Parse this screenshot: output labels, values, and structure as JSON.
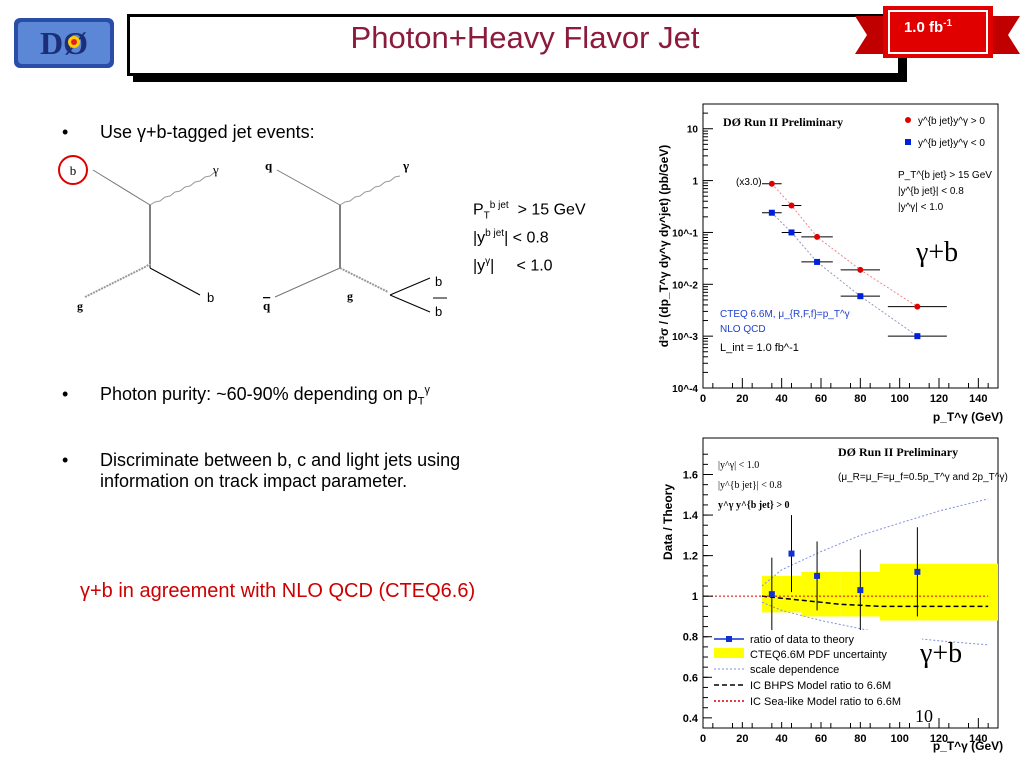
{
  "header": {
    "title": "Photon+Heavy Flavor Jet",
    "lumi_badge": "1.0 fb",
    "lumi_badge_exp": "-1",
    "logo_text": "DØ"
  },
  "bullets": [
    {
      "text": "Use γ+b-tagged jet events:"
    },
    {
      "text": "Photon purity: ~60-90% depending on p",
      "sub": "T",
      "sup": "γ"
    },
    {
      "text": "Discriminate between b, c and light jets using",
      "line2": "information on track impact parameter."
    }
  ],
  "conclusion": "γ+b in agreement with NLO QCD (CTEQ6.6)",
  "cuts": {
    "c1": {
      "var": "P",
      "sub": "T",
      "sup": "b jet",
      "op": "> 15 GeV"
    },
    "c2": {
      "pre": "|y",
      "sup": "b jet",
      "post": "| < 0.8"
    },
    "c3": {
      "pre": "|y",
      "sup": "γ",
      "post": "|     < 1.0"
    }
  },
  "feynman": {
    "d1": {
      "b_circled": "b",
      "gamma": "γ",
      "g": "g",
      "b_out": "b"
    },
    "d2": {
      "q": "q",
      "gamma": "γ",
      "qbar": "q",
      "g": "g",
      "b": "b",
      "bbar": "b"
    }
  },
  "page_number": "10",
  "chart_data": [
    {
      "type": "scatter",
      "title": "DØ Run II Preliminary",
      "ylabel": "d³σ / (dp_T^γ dy^γ dy^jet)  (pb/GeV)",
      "xlabel": "p_T^γ (GeV)",
      "xlim": [
        0,
        150
      ],
      "ylim": [
        0.0001,
        30
      ],
      "yscale": "log",
      "xticks": [
        "0",
        "20",
        "40",
        "60",
        "80",
        "100",
        "120",
        "140"
      ],
      "yticks": [
        "10^-4",
        "10^-3",
        "10^-2",
        "10^-1",
        "1",
        "10"
      ],
      "legend": [
        "y^{b jet}y^γ > 0",
        "y^{b jet}y^γ < 0"
      ],
      "cut_text": [
        "P_T^{b jet} > 15 GeV",
        "|y^{b jet}| < 0.8",
        "|y^γ|    < 1.0"
      ],
      "theory_text": [
        "CTEQ 6.6M, μ_{R,F,f}=p_T^γ",
        "NLO QCD",
        "L_int = 1.0 fb^-1"
      ],
      "scale_note": "(x3.0)",
      "big_label": "γ+b",
      "series": [
        {
          "name": "y^{b jet}y^γ > 0",
          "color": "#e00000",
          "marker": "circle",
          "x": [
            35,
            45,
            58,
            80,
            109
          ],
          "xerr": [
            5,
            5,
            8,
            10,
            15
          ],
          "y": [
            0.87,
            0.33,
            0.082,
            0.019,
            0.0037
          ]
        },
        {
          "name": "y^{b jet}y^γ < 0",
          "color": "#0020e0",
          "marker": "square",
          "x": [
            35,
            45,
            58,
            80,
            109
          ],
          "xerr": [
            5,
            5,
            8,
            10,
            15
          ],
          "y": [
            0.24,
            0.1,
            0.027,
            0.0059,
            0.001
          ]
        }
      ]
    },
    {
      "type": "scatter",
      "title": "DØ Run II Preliminary",
      "subtitle": "(μ_R=μ_F=μ_f=0.5p_T^γ and 2p_T^γ)",
      "ylabel": "Data / Theory",
      "xlabel": "p_T^γ (GeV)",
      "xlim": [
        0,
        150
      ],
      "ylim": [
        0.35,
        1.78
      ],
      "xticks": [
        "0",
        "20",
        "40",
        "60",
        "80",
        "100",
        "120",
        "140"
      ],
      "yticks": [
        "0.4",
        "0.6",
        "0.8",
        "1",
        "1.2",
        "1.4",
        "1.6"
      ],
      "cut_text": [
        "|y^γ|   < 1.0",
        "|y^{b jet}|   < 0.8",
        "y^γ y^{b jet}  > 0"
      ],
      "legend": [
        "ratio of data to theory",
        "CTEQ6.6M PDF uncertainty",
        "scale dependence",
        "IC BHPS Model ratio to 6.6M",
        "IC Sea-like Model ratio to 6.6M"
      ],
      "big_label": "γ+b",
      "ratio": {
        "x": [
          35,
          45,
          58,
          80,
          109
        ],
        "y": [
          1.01,
          1.21,
          1.1,
          1.03,
          1.12
        ],
        "yerr": [
          0.18,
          0.19,
          0.17,
          0.2,
          0.22
        ]
      },
      "pdf_band": {
        "x": [
          30,
          40,
          50,
          70,
          90,
          150
        ],
        "lo": [
          0.92,
          0.92,
          0.9,
          0.9,
          0.88,
          0.88
        ],
        "hi": [
          1.1,
          1.1,
          1.12,
          1.12,
          1.16,
          1.16
        ]
      },
      "scale_dependence": {
        "x": [
          30,
          40,
          60,
          80,
          100,
          120,
          145
        ],
        "lo": [
          0.97,
          0.93,
          0.88,
          0.84,
          0.8,
          0.78,
          0.76
        ],
        "hi": [
          1.05,
          1.13,
          1.22,
          1.3,
          1.36,
          1.42,
          1.48
        ]
      },
      "ic_bhps": {
        "x": [
          30,
          50,
          70,
          90,
          110,
          145
        ],
        "y": [
          1.0,
          0.98,
          0.96,
          0.95,
          0.95,
          0.95
        ]
      },
      "ic_sea": {
        "x": [
          0,
          145
        ],
        "y": [
          1.0,
          1.0
        ]
      }
    }
  ]
}
